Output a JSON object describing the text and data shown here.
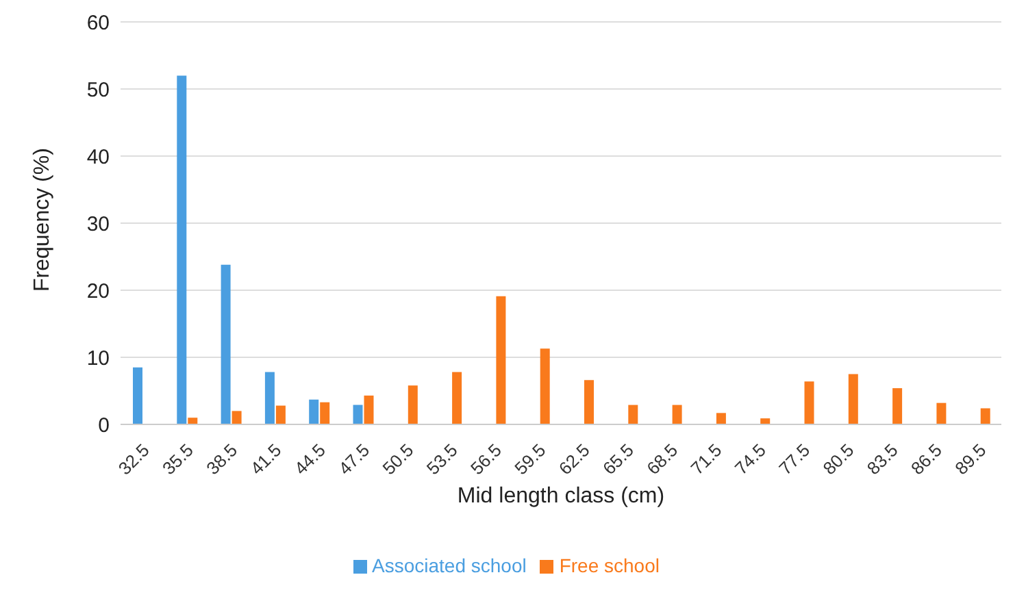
{
  "chart_data": {
    "type": "bar",
    "xlabel": "Mid length class (cm)",
    "ylabel": "Frequency (%)",
    "categories": [
      "32.5",
      "35.5",
      "38.5",
      "41.5",
      "44.5",
      "47.5",
      "50.5",
      "53.5",
      "56.5",
      "59.5",
      "62.5",
      "65.5",
      "68.5",
      "71.5",
      "74.5",
      "77.5",
      "80.5",
      "83.5",
      "86.5",
      "89.5"
    ],
    "series": [
      {
        "name": "Associated school",
        "color": "#4a9ee0",
        "values": [
          8.5,
          52,
          23.8,
          7.8,
          3.7,
          2.9,
          null,
          null,
          null,
          null,
          null,
          null,
          null,
          null,
          null,
          null,
          null,
          null,
          null,
          null
        ]
      },
      {
        "name": "Free school",
        "color": "#f97a1c",
        "values": [
          null,
          1.0,
          2.0,
          2.8,
          3.3,
          4.3,
          5.8,
          7.8,
          19.1,
          11.3,
          6.6,
          2.9,
          2.9,
          1.7,
          0.9,
          6.4,
          7.5,
          5.4,
          3.2,
          2.4
        ]
      }
    ],
    "ylim": [
      0,
      60
    ],
    "yticks": [
      0,
      10,
      20,
      30,
      40,
      50,
      60
    ],
    "grid": "y",
    "legend": "bottom"
  }
}
